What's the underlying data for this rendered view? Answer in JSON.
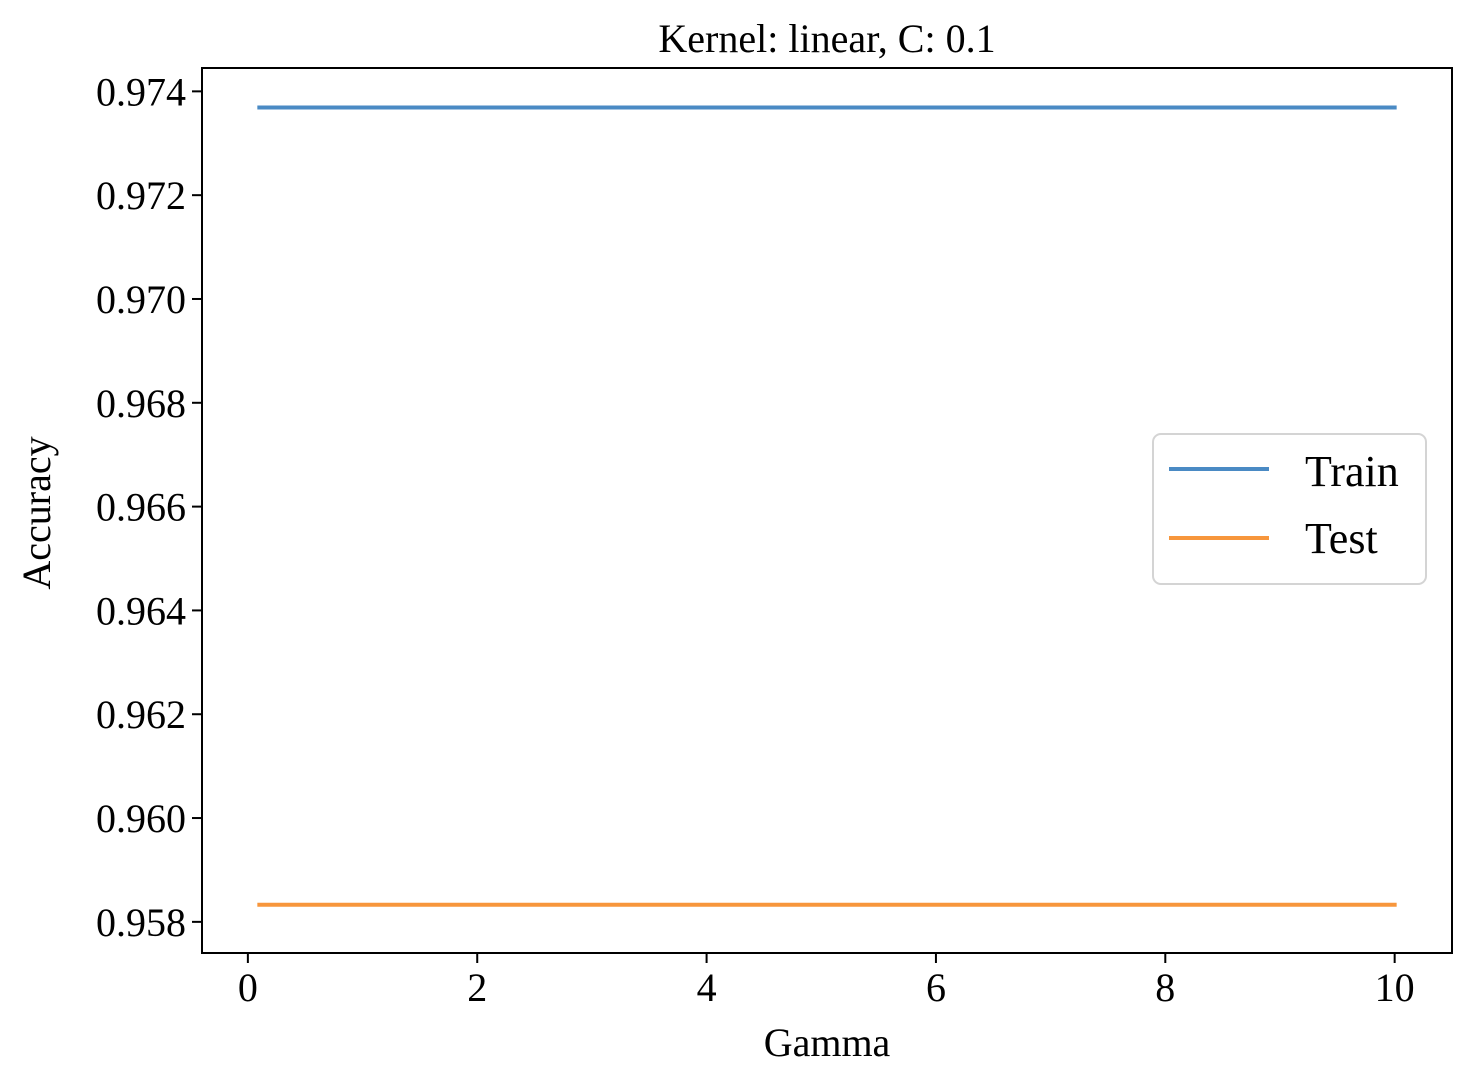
{
  "chart_data": {
    "type": "line",
    "title": "Kernel: linear, C: 0.1",
    "xlabel": "Gamma",
    "ylabel": "Accuracy",
    "xlim": [
      -0.4,
      10.5
    ],
    "ylim": [
      0.9574,
      0.97445
    ],
    "xticks": [
      0,
      2,
      4,
      6,
      8,
      10
    ],
    "xtick_labels": [
      "0",
      "2",
      "4",
      "6",
      "8",
      "10"
    ],
    "yticks": [
      0.958,
      0.96,
      0.962,
      0.964,
      0.966,
      0.968,
      0.97,
      0.972,
      0.974
    ],
    "ytick_labels": [
      "0.958",
      "0.960",
      "0.962",
      "0.964",
      "0.966",
      "0.968",
      "0.970",
      "0.972",
      "0.974"
    ],
    "x": [
      0.1,
      10
    ],
    "series": [
      {
        "name": "Train",
        "color": "#4a8ac4",
        "values": [
          0.97369,
          0.97369
        ]
      },
      {
        "name": "Test",
        "color": "#f7963c",
        "values": [
          0.95833,
          0.95833
        ]
      }
    ],
    "grid": false,
    "legend_position": "center-right"
  }
}
